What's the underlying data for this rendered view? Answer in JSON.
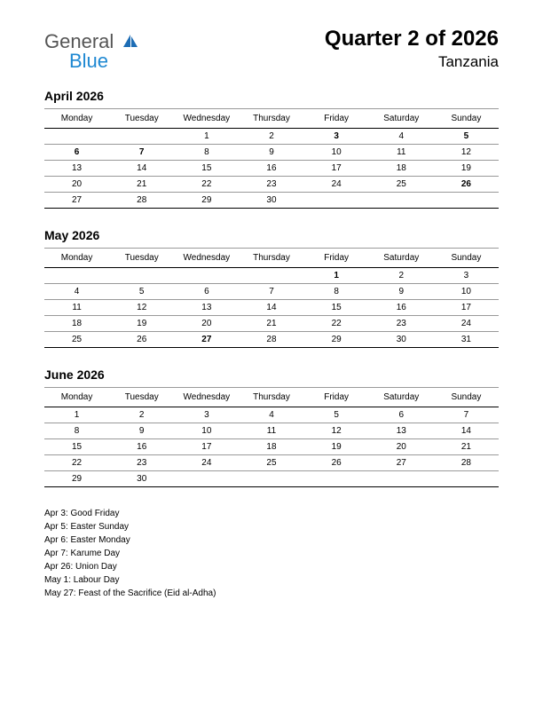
{
  "logo": {
    "text_general": "General",
    "text_blue": "Blue",
    "icon_color": "#1e6db5"
  },
  "title": {
    "main": "Quarter 2 of 2026",
    "sub": "Tanzania"
  },
  "day_headers": [
    "Monday",
    "Tuesday",
    "Wednesday",
    "Thursday",
    "Friday",
    "Saturday",
    "Sunday"
  ],
  "months": [
    {
      "name": "April 2026",
      "weeks": [
        [
          {
            "d": ""
          },
          {
            "d": ""
          },
          {
            "d": "1"
          },
          {
            "d": "2"
          },
          {
            "d": "3",
            "h": true
          },
          {
            "d": "4"
          },
          {
            "d": "5",
            "h": true
          }
        ],
        [
          {
            "d": "6",
            "h": true
          },
          {
            "d": "7",
            "h": true
          },
          {
            "d": "8"
          },
          {
            "d": "9"
          },
          {
            "d": "10"
          },
          {
            "d": "11"
          },
          {
            "d": "12"
          }
        ],
        [
          {
            "d": "13"
          },
          {
            "d": "14"
          },
          {
            "d": "15"
          },
          {
            "d": "16"
          },
          {
            "d": "17"
          },
          {
            "d": "18"
          },
          {
            "d": "19"
          }
        ],
        [
          {
            "d": "20"
          },
          {
            "d": "21"
          },
          {
            "d": "22"
          },
          {
            "d": "23"
          },
          {
            "d": "24"
          },
          {
            "d": "25"
          },
          {
            "d": "26",
            "h": true
          }
        ],
        [
          {
            "d": "27"
          },
          {
            "d": "28"
          },
          {
            "d": "29"
          },
          {
            "d": "30"
          },
          {
            "d": ""
          },
          {
            "d": ""
          },
          {
            "d": ""
          }
        ]
      ]
    },
    {
      "name": "May 2026",
      "weeks": [
        [
          {
            "d": ""
          },
          {
            "d": ""
          },
          {
            "d": ""
          },
          {
            "d": ""
          },
          {
            "d": "1",
            "h": true
          },
          {
            "d": "2"
          },
          {
            "d": "3"
          }
        ],
        [
          {
            "d": "4"
          },
          {
            "d": "5"
          },
          {
            "d": "6"
          },
          {
            "d": "7"
          },
          {
            "d": "8"
          },
          {
            "d": "9"
          },
          {
            "d": "10"
          }
        ],
        [
          {
            "d": "11"
          },
          {
            "d": "12"
          },
          {
            "d": "13"
          },
          {
            "d": "14"
          },
          {
            "d": "15"
          },
          {
            "d": "16"
          },
          {
            "d": "17"
          }
        ],
        [
          {
            "d": "18"
          },
          {
            "d": "19"
          },
          {
            "d": "20"
          },
          {
            "d": "21"
          },
          {
            "d": "22"
          },
          {
            "d": "23"
          },
          {
            "d": "24"
          }
        ],
        [
          {
            "d": "25"
          },
          {
            "d": "26"
          },
          {
            "d": "27",
            "h": true
          },
          {
            "d": "28"
          },
          {
            "d": "29"
          },
          {
            "d": "30"
          },
          {
            "d": "31"
          }
        ]
      ]
    },
    {
      "name": "June 2026",
      "weeks": [
        [
          {
            "d": "1"
          },
          {
            "d": "2"
          },
          {
            "d": "3"
          },
          {
            "d": "4"
          },
          {
            "d": "5"
          },
          {
            "d": "6"
          },
          {
            "d": "7"
          }
        ],
        [
          {
            "d": "8"
          },
          {
            "d": "9"
          },
          {
            "d": "10"
          },
          {
            "d": "11"
          },
          {
            "d": "12"
          },
          {
            "d": "13"
          },
          {
            "d": "14"
          }
        ],
        [
          {
            "d": "15"
          },
          {
            "d": "16"
          },
          {
            "d": "17"
          },
          {
            "d": "18"
          },
          {
            "d": "19"
          },
          {
            "d": "20"
          },
          {
            "d": "21"
          }
        ],
        [
          {
            "d": "22"
          },
          {
            "d": "23"
          },
          {
            "d": "24"
          },
          {
            "d": "25"
          },
          {
            "d": "26"
          },
          {
            "d": "27"
          },
          {
            "d": "28"
          }
        ],
        [
          {
            "d": "29"
          },
          {
            "d": "30"
          },
          {
            "d": ""
          },
          {
            "d": ""
          },
          {
            "d": ""
          },
          {
            "d": ""
          },
          {
            "d": ""
          }
        ]
      ]
    }
  ],
  "holidays": [
    "Apr 3: Good Friday",
    "Apr 5: Easter Sunday",
    "Apr 6: Easter Monday",
    "Apr 7: Karume Day",
    "Apr 26: Union Day",
    "May 1: Labour Day",
    "May 27: Feast of the Sacrifice (Eid al-Adha)"
  ],
  "colors": {
    "holiday_text": "#cc0000",
    "text": "#000000",
    "border_light": "#999999",
    "border_dark": "#000000",
    "background": "#ffffff"
  }
}
